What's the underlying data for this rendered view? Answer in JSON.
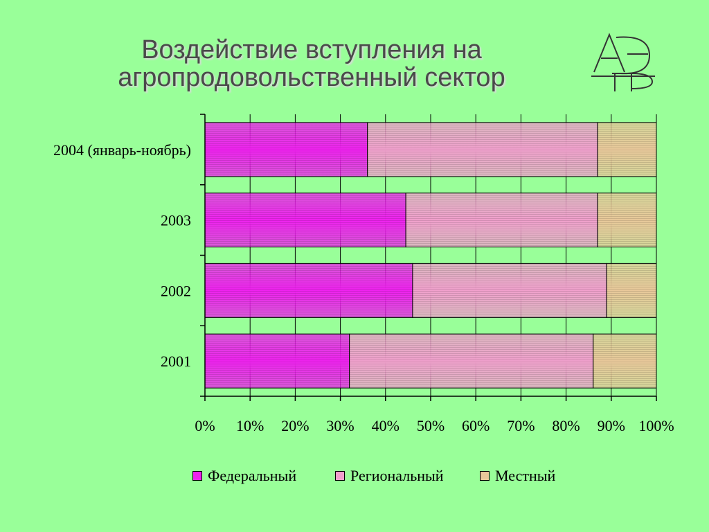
{
  "slide": {
    "title_line1": "Воздействие вступления на",
    "title_line2": "агропродовольственный сектор",
    "logo": "ae-p-monogram-logo"
  },
  "colors": {
    "background": "#99ff99",
    "federal": "#ee22ee",
    "regional": "#f0a0cc",
    "local": "#e8c89a"
  },
  "chart_data": {
    "type": "bar",
    "orientation": "horizontal",
    "stacked": "percent",
    "categories": [
      "2004 (январь-ноябрь)",
      "2003",
      "2002",
      "2001"
    ],
    "series": [
      {
        "name": "Федеральный",
        "values": [
          36,
          44.5,
          46,
          32
        ]
      },
      {
        "name": "Региональный",
        "values": [
          51,
          42.5,
          43,
          54
        ]
      },
      {
        "name": "Местный",
        "values": [
          13,
          13,
          11,
          14
        ]
      }
    ],
    "x_ticks": [
      "0%",
      "10%",
      "20%",
      "30%",
      "40%",
      "50%",
      "60%",
      "70%",
      "80%",
      "90%",
      "100%"
    ],
    "xlim": [
      0,
      100
    ],
    "grid": true,
    "legend_position": "bottom"
  }
}
